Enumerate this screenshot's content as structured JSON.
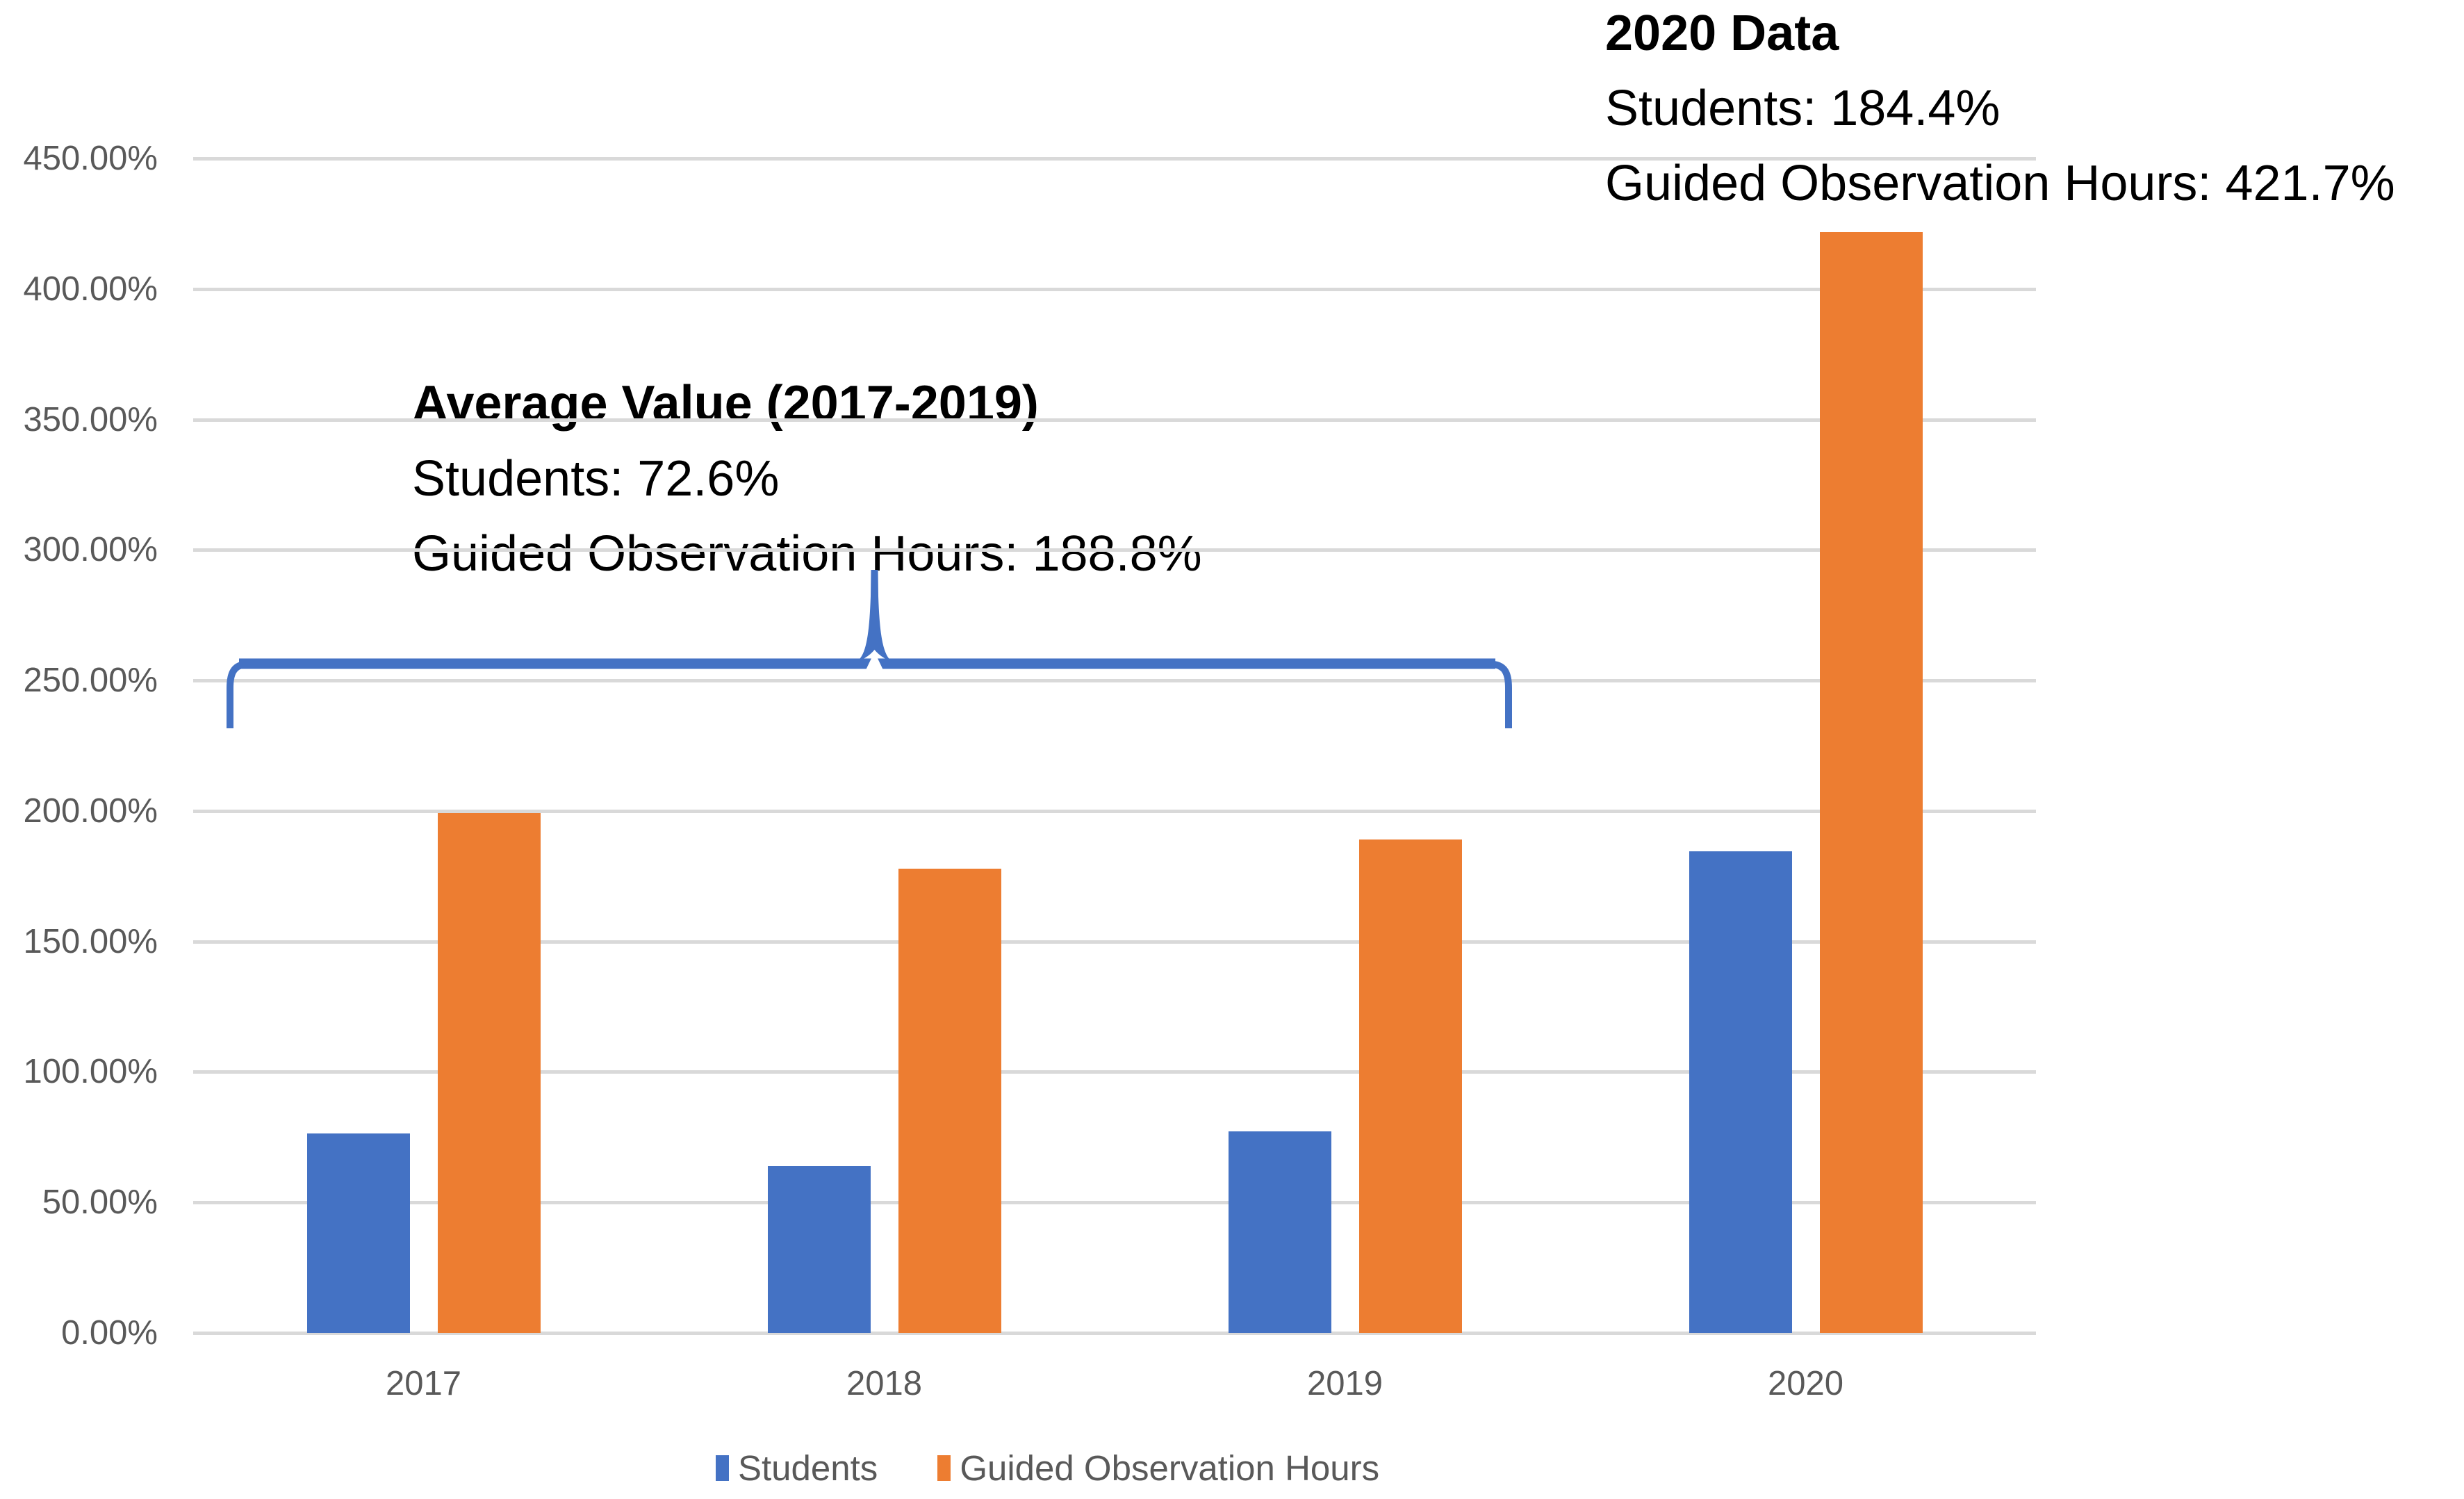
{
  "chart_data": {
    "type": "bar",
    "categories": [
      "2017",
      "2018",
      "2019",
      "2020"
    ],
    "series": [
      {
        "name": "Students",
        "color": "#4472C4",
        "values": [
          76.5,
          64.0,
          77.3,
          184.4
        ]
      },
      {
        "name": "Guided Observation Hours",
        "color": "#ED7D31",
        "values": [
          199.3,
          178.0,
          189.1,
          421.7
        ]
      }
    ],
    "title": "",
    "xlabel": "",
    "ylabel": "",
    "ylim": [
      0,
      450
    ],
    "ytick_step": 50,
    "ytick_decimals": 2,
    "ytick_suffix": "%",
    "grid": "horizontal",
    "legend_position": "bottom-center"
  },
  "annotations": {
    "top_right": {
      "title": "2020 Data",
      "lines": [
        "Students: 184.4%",
        "Guided Observation Hours: 421.7%"
      ]
    },
    "average_range": {
      "title": "Average Value (2017-2019)",
      "lines": [
        "Students: 72.6%",
        "Guided Observation Hours: 188.8%"
      ]
    },
    "brace": {
      "color": "#4472C4",
      "spans": "2017-2019"
    }
  },
  "style": {
    "background": "#FFFFFF",
    "gridline_color": "#D9D9D9",
    "axisline_color": "#D9D9D9",
    "axis_text_color": "#595959",
    "annotation_text_color": "#000000"
  }
}
